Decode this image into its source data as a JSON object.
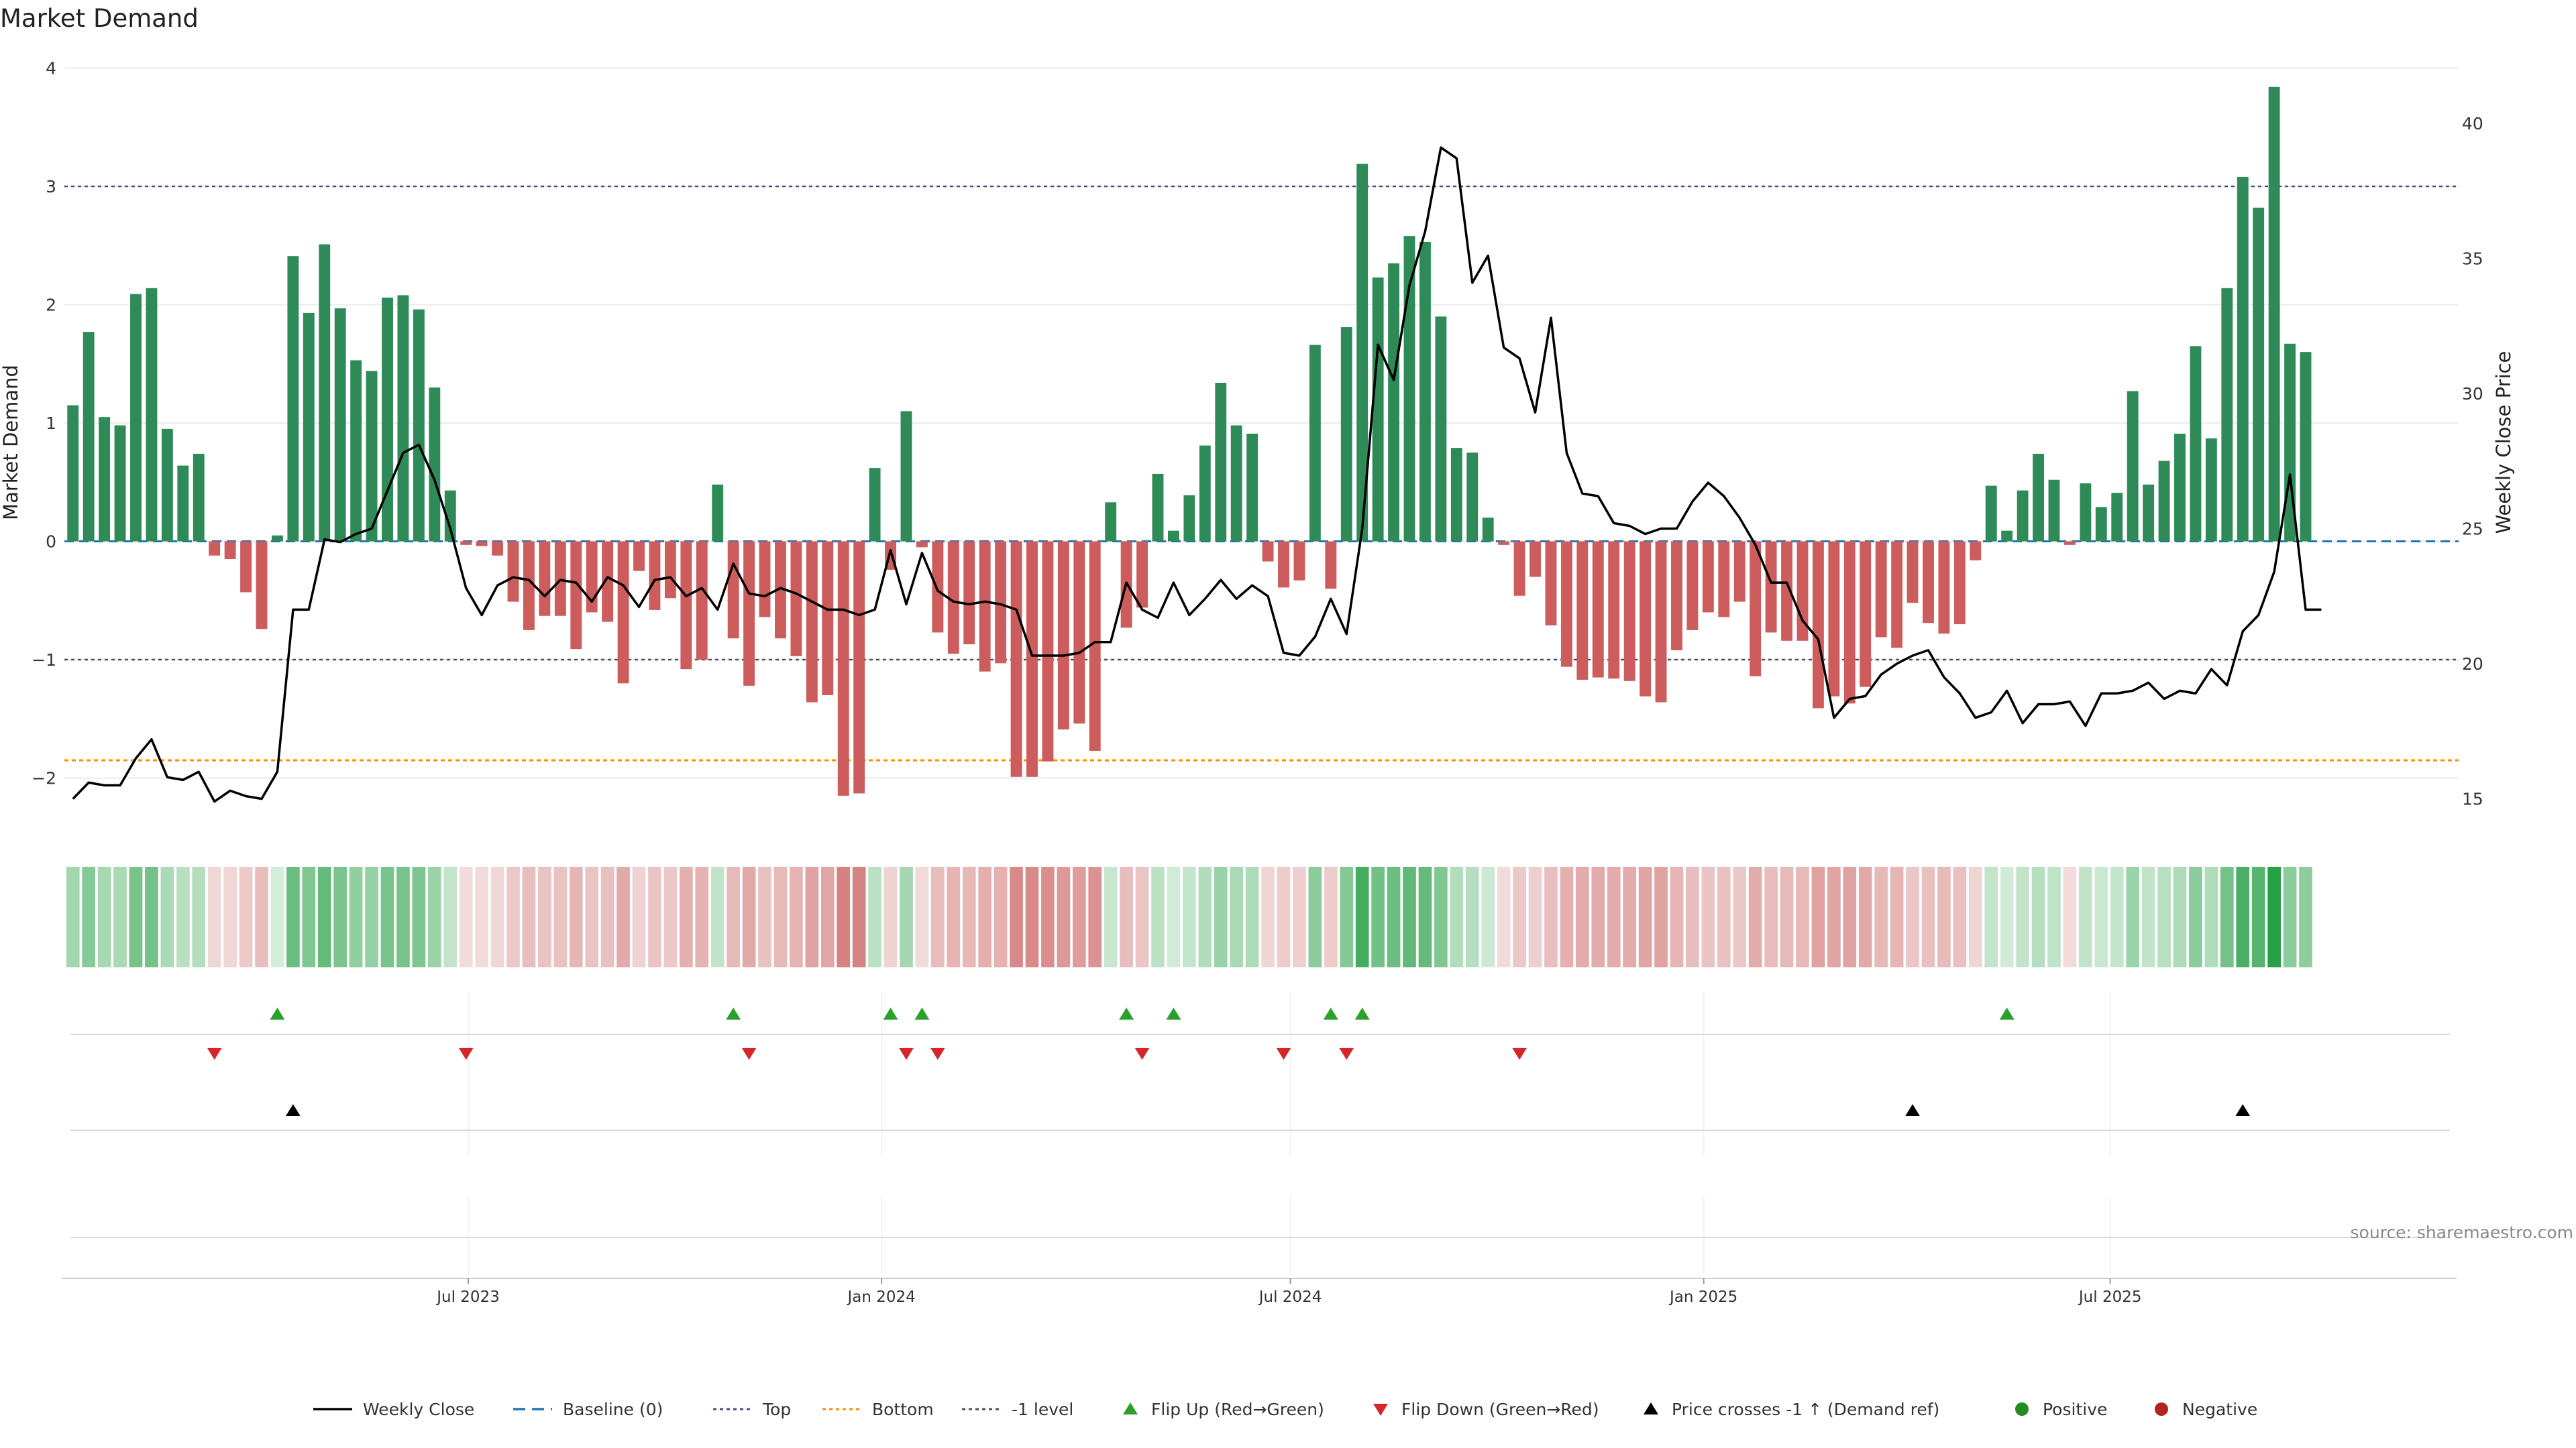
{
  "chart_data": {
    "type": "bar",
    "title": "Market Demand",
    "ylabel": "Market Demand",
    "y2label": "Weekly Close Price",
    "ylim": [
      -2.45,
      4.15
    ],
    "y2lim": [
      13.8,
      42.7
    ],
    "yticks": [
      4,
      3,
      2,
      1,
      0,
      -1,
      -2
    ],
    "ytick_labels": [
      "4",
      "3",
      "2",
      "1",
      "0",
      "−1",
      "−2"
    ],
    "y2ticks": [
      40,
      35,
      30,
      25,
      20,
      15
    ],
    "y2tick_labels": [
      "40",
      "35",
      "30",
      "25",
      "20",
      "15"
    ],
    "reference_lines": {
      "top": 3.0,
      "bottom": -1.85,
      "minus_one": -1.0,
      "baseline": 0
    },
    "x_start": "2023-01-06",
    "x_range": [
      "2023-01-01",
      "2025-12-01"
    ],
    "x_ticks": [
      "2023-07-01",
      "2024-01-01",
      "2024-07-01",
      "2025-01-01",
      "2025-07-01"
    ],
    "x_tick_labels": [
      "Jul 2023",
      "Jan 2024",
      "Jul 2024",
      "Jan 2025",
      "Jul 2025"
    ],
    "demand": [
      1.15,
      1.77,
      1.05,
      0.98,
      2.09,
      2.14,
      0.95,
      0.64,
      0.74,
      -0.12,
      -0.15,
      -0.43,
      -0.74,
      0.05,
      2.41,
      1.93,
      2.51,
      1.97,
      1.53,
      1.44,
      2.06,
      2.08,
      1.96,
      1.3,
      0.43,
      -0.03,
      -0.04,
      -0.12,
      -0.51,
      -0.75,
      -0.63,
      -0.63,
      -0.91,
      -0.6,
      -0.68,
      -1.2,
      -0.25,
      -0.58,
      -0.48,
      -1.08,
      -1.0,
      0.48,
      -0.82,
      -1.22,
      -0.64,
      -0.82,
      -0.97,
      -1.36,
      -1.3,
      -2.15,
      -2.13,
      0.62,
      -0.24,
      1.1,
      -0.05,
      -0.77,
      -0.95,
      -0.87,
      -1.1,
      -1.03,
      -1.99,
      -1.99,
      -1.86,
      -1.59,
      -1.54,
      -1.77,
      0.33,
      -0.73,
      -0.56,
      0.57,
      0.09,
      0.39,
      0.81,
      1.34,
      0.98,
      0.91,
      -0.17,
      -0.39,
      -0.33,
      1.66,
      -0.4,
      1.81,
      3.19,
      2.23,
      2.35,
      2.58,
      2.53,
      1.9,
      0.79,
      0.75,
      0.2,
      -0.03,
      -0.46,
      -0.3,
      -0.71,
      -1.06,
      -1.17,
      -1.15,
      -1.16,
      -1.18,
      -1.31,
      -1.36,
      -0.92,
      -0.75,
      -0.6,
      -0.64,
      -0.51,
      -1.14,
      -0.77,
      -0.84,
      -0.84,
      -1.41,
      -1.31,
      -1.37,
      -1.23,
      -0.81,
      -0.9,
      -0.52,
      -0.69,
      -0.78,
      -0.7,
      -0.16,
      0.47,
      0.09,
      0.43,
      0.74,
      0.52,
      -0.03,
      0.49,
      0.29,
      0.41,
      1.27,
      0.48,
      0.68,
      0.91,
      1.65,
      0.87,
      2.14,
      3.08,
      2.82,
      3.84,
      1.67,
      1.6
    ],
    "price": [
      15.0,
      15.6,
      15.5,
      15.5,
      16.5,
      17.2,
      15.8,
      15.7,
      16.0,
      14.9,
      15.3,
      15.1,
      15.0,
      16.0,
      22.0,
      22.0,
      24.6,
      24.5,
      24.8,
      25.0,
      26.4,
      27.8,
      28.1,
      26.8,
      25.0,
      22.8,
      21.8,
      22.9,
      23.2,
      23.1,
      22.5,
      23.1,
      23.0,
      22.3,
      23.2,
      22.9,
      22.1,
      23.1,
      23.2,
      22.5,
      22.8,
      22.0,
      23.7,
      22.6,
      22.5,
      22.8,
      22.6,
      22.3,
      22.0,
      22.0,
      21.8,
      22.0,
      24.2,
      22.2,
      24.1,
      22.7,
      22.3,
      22.2,
      22.3,
      22.2,
      22.0,
      20.3,
      20.3,
      20.3,
      20.4,
      20.8,
      20.8,
      23.0,
      22.0,
      21.7,
      23.0,
      21.8,
      22.4,
      23.1,
      22.4,
      22.9,
      22.5,
      20.4,
      20.3,
      21.0,
      22.4,
      21.1,
      25.0,
      31.8,
      30.5,
      34.0,
      36.0,
      39.1,
      38.7,
      34.1,
      35.1,
      31.7,
      31.3,
      29.3,
      32.8,
      27.8,
      26.3,
      26.2,
      25.2,
      25.1,
      24.8,
      25.0,
      25.0,
      26.0,
      26.7,
      26.2,
      25.4,
      24.4,
      23.0,
      23.0,
      21.6,
      20.9,
      18.0,
      18.7,
      18.8,
      19.6,
      20.0,
      20.3,
      20.5,
      19.5,
      18.9,
      18.0,
      18.2,
      19.0,
      17.8,
      18.5,
      18.5,
      18.6,
      17.7,
      18.9,
      18.9,
      19.0,
      19.3,
      18.7,
      19.0,
      18.9,
      19.8,
      19.2,
      21.2,
      21.8,
      23.4,
      27.0,
      22.0,
      22.0
    ],
    "flip_up_index": [
      13,
      42,
      52,
      54,
      67,
      70,
      80,
      82,
      123
    ],
    "flip_down_index": [
      9,
      25,
      43,
      53,
      55,
      68,
      77,
      81,
      92
    ],
    "price_cross_index": [
      14,
      117,
      138
    ],
    "source": "source: sharemaestro.com",
    "legend": {
      "placement": "bottom",
      "entries": [
        "Weekly Close",
        "Baseline (0)",
        "Top",
        "Bottom",
        "-1 level",
        "Flip Up (Red→Green)",
        "Flip Down (Green→Red)",
        "Price crosses -1 ↑ (Demand ref)",
        "Positive",
        "Negative"
      ]
    },
    "colors": {
      "positive": "#2e8b57",
      "negative": "#cd5c5c",
      "price": "#000000",
      "baseline": "#1f77b4",
      "top": "#4b4b8f",
      "bottom": "#ff8c00",
      "minus_one": "#4b4b6b",
      "flip_up": "#2ca02c",
      "flip_down": "#d62728",
      "cross": "#000000",
      "legend_positive": "#228b22",
      "legend_negative": "#b22222"
    }
  }
}
